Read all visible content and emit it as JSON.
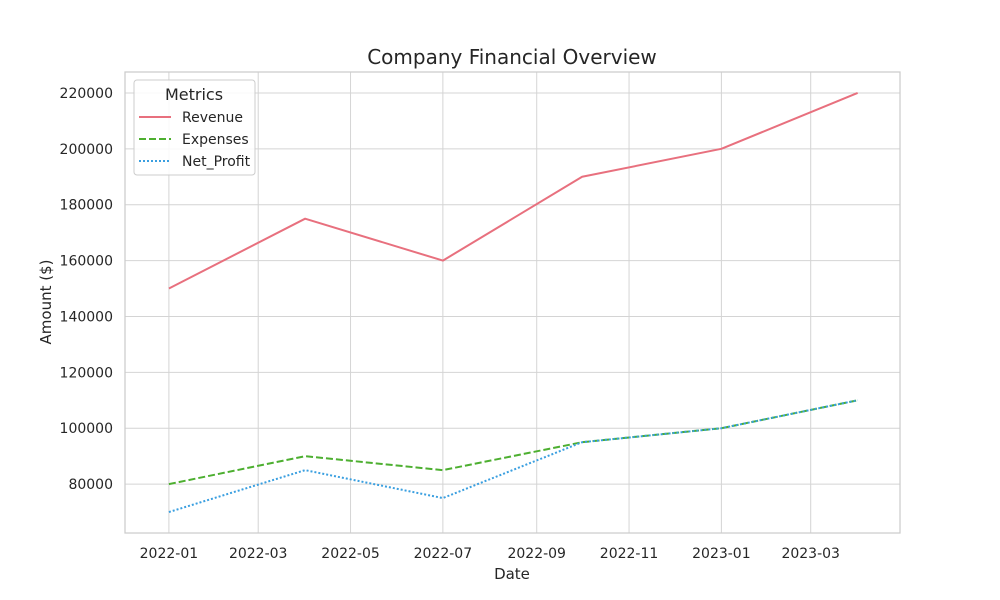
{
  "chart_data": {
    "type": "line",
    "title": "Company Financial Overview",
    "xlabel": "Date",
    "ylabel": "Amount ($)",
    "x": [
      "2022-01-01",
      "2022-04-01",
      "2022-07-01",
      "2022-10-01",
      "2023-01-01",
      "2023-04-01"
    ],
    "xlim": [
      "2021-12-03",
      "2023-04-29"
    ],
    "ylim": [
      62500,
      227500
    ],
    "x_ticks": [
      "2022-01",
      "2022-03",
      "2022-05",
      "2022-07",
      "2022-09",
      "2022-11",
      "2023-01",
      "2023-03"
    ],
    "y_ticks": [
      80000,
      100000,
      120000,
      140000,
      160000,
      180000,
      200000,
      220000
    ],
    "grid": true,
    "legend": {
      "title": "Metrics",
      "placement": "top-left"
    },
    "series": [
      {
        "name": "Revenue",
        "color": "#e8707e",
        "style": "solid",
        "values": [
          150000,
          175000,
          160000,
          190000,
          200000,
          220000
        ]
      },
      {
        "name": "Expenses",
        "color": "#4daf30",
        "style": "dashed",
        "values": [
          80000,
          90000,
          85000,
          95000,
          100000,
          110000
        ]
      },
      {
        "name": "Net_Profit",
        "color": "#3a9fe0",
        "style": "dotted",
        "values": [
          70000,
          85000,
          75000,
          95000,
          100000,
          110000
        ]
      }
    ]
  }
}
